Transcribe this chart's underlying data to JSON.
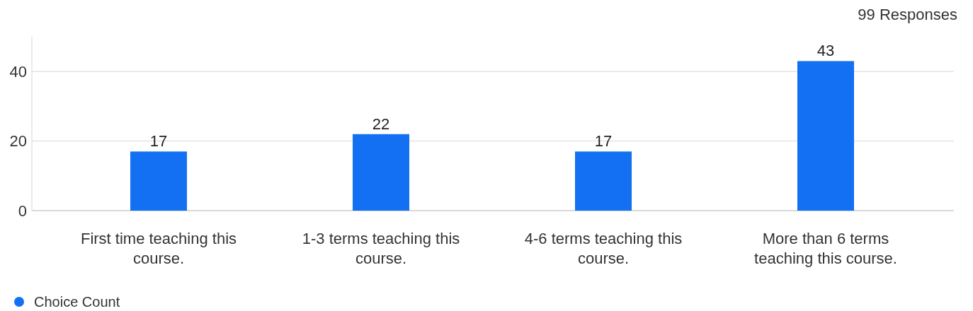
{
  "chart_data": {
    "type": "bar",
    "categories": [
      "First time teaching this course.",
      "1-3 terms teaching this course.",
      "4-6 terms teaching this course.",
      "More than 6 terms teaching this course."
    ],
    "series": [
      {
        "name": "Choice Count",
        "color": "#1470f2",
        "values": [
          17,
          22,
          17,
          43
        ]
      }
    ],
    "ylim": [
      0,
      50
    ],
    "yticks": [
      0,
      20,
      40
    ],
    "grid": "y",
    "data_labels": true,
    "legend": "bottom left",
    "annotations": [
      "99 Responses"
    ]
  }
}
